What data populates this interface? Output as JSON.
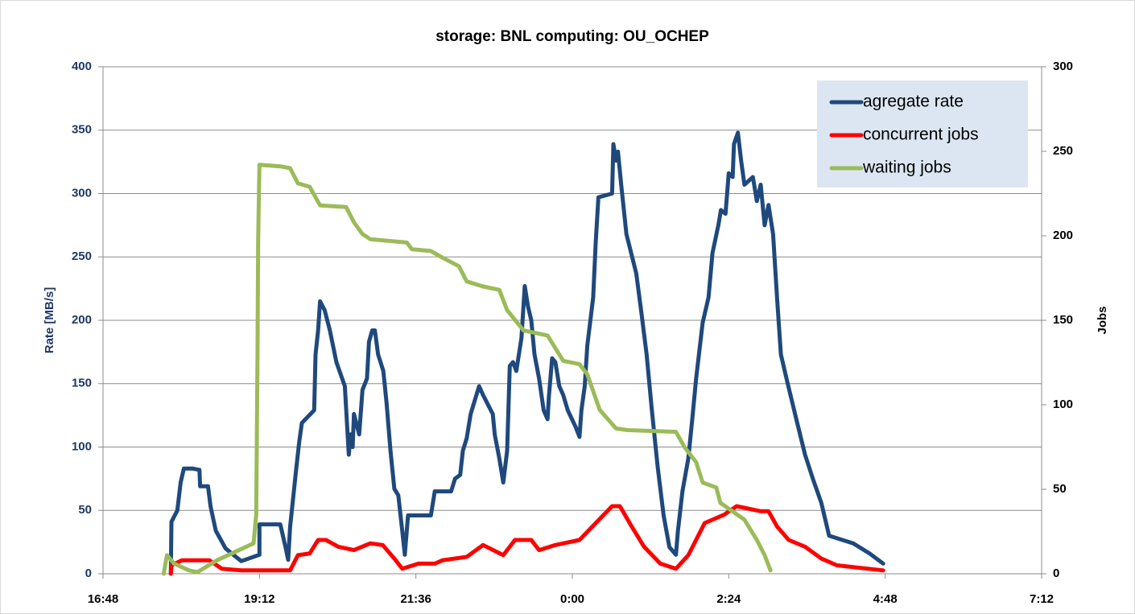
{
  "chart_data": {
    "type": "line",
    "title": "storage: BNL  computing: OU_OCHEP",
    "ylabel": "Rate [MB/s]",
    "y2label": "Jobs",
    "grid": true,
    "legend": "top-right",
    "xlim": [
      16.8,
      31.2
    ],
    "xticks": [
      {
        "value": 16.8,
        "label": "16:48"
      },
      {
        "value": 19.2,
        "label": "19:12"
      },
      {
        "value": 21.6,
        "label": "21:36"
      },
      {
        "value": 24,
        "label": "0:00"
      },
      {
        "value": 26.4,
        "label": "2:24"
      },
      {
        "value": 28.8,
        "label": "4:48"
      },
      {
        "value": 31.2,
        "label": "7:12"
      }
    ],
    "ylim": [
      0,
      400
    ],
    "yticks": [
      0,
      50,
      100,
      150,
      200,
      250,
      300,
      350,
      400
    ],
    "y2lim": [
      0,
      300
    ],
    "y2ticks": [
      0,
      50,
      100,
      150,
      200,
      250,
      300
    ],
    "series": [
      {
        "name": "agregate rate",
        "color": "#1f497d",
        "x": [
          17.84,
          17.85,
          17.94,
          17.99,
          18.04,
          18.18,
          18.28,
          18.29,
          18.41,
          18.45,
          18.53,
          18.68,
          18.92,
          19.2,
          19.2,
          19.52,
          19.6,
          19.64,
          19.67,
          19.76,
          19.81,
          19.85,
          20.04,
          20.06,
          20.1,
          20.13,
          20.2,
          20.28,
          20.38,
          20.51,
          20.57,
          20.6,
          20.63,
          20.65,
          20.73,
          20.78,
          20.85,
          20.88,
          20.93,
          20.97,
          21.02,
          21.1,
          21.15,
          21.21,
          21.27,
          21.33,
          21.39,
          21.43,
          21.48,
          21.52,
          21.83,
          21.89,
          22.14,
          22.2,
          22.28,
          22.32,
          22.38,
          22.44,
          22.57,
          22.63,
          22.78,
          22.81,
          22.88,
          22.94,
          23.0,
          23.04,
          23.09,
          23.14,
          23.22,
          23.27,
          23.32,
          23.37,
          23.42,
          23.49,
          23.56,
          23.62,
          23.64,
          23.69,
          23.74,
          23.8,
          23.86,
          23.93,
          24.05,
          24.11,
          24.14,
          24.19,
          24.23,
          24.32,
          24.36,
          24.4,
          24.61,
          24.63,
          24.67,
          24.7,
          24.75,
          24.83,
          24.98,
          25.06,
          25.14,
          25.22,
          25.31,
          25.4,
          25.49,
          25.59,
          25.62,
          25.69,
          25.78,
          25.84,
          25.9,
          26.0,
          26.09,
          26.15,
          26.24,
          26.28,
          26.35,
          26.4,
          26.46,
          26.48,
          26.54,
          26.59,
          26.64,
          26.77,
          26.83,
          26.89,
          26.95,
          27.01,
          27.08,
          27.14,
          27.2,
          27.3,
          27.45,
          27.57,
          27.69,
          27.82,
          27.94,
          28.31,
          28.56,
          28.77
        ],
        "values": [
          0,
          41,
          50,
          72,
          83,
          83,
          82,
          69,
          69,
          53,
          34,
          20,
          10,
          15,
          39,
          39,
          21,
          11,
          37,
          81,
          104,
          119,
          129,
          173,
          192,
          215,
          208,
          192,
          167,
          148,
          94,
          110,
          100,
          126,
          110,
          145,
          154,
          183,
          192,
          192,
          173,
          160,
          135,
          97,
          67,
          62,
          34,
          15,
          46,
          46,
          46,
          65,
          65,
          75,
          78,
          97,
          107,
          126,
          148,
          141,
          126,
          110,
          91,
          72,
          97,
          164,
          167,
          160,
          186,
          227,
          211,
          200,
          173,
          154,
          129,
          122,
          140,
          170,
          167,
          148,
          141,
          129,
          116,
          108,
          129,
          148,
          180,
          218,
          262,
          297,
          300,
          339,
          326,
          333,
          307,
          268,
          237,
          206,
          173,
          129,
          84,
          46,
          21,
          15,
          34,
          65,
          91,
          122,
          154,
          198,
          218,
          253,
          275,
          287,
          284,
          316,
          313,
          339,
          348,
          326,
          307,
          313,
          294,
          307,
          275,
          291,
          268,
          218,
          173,
          151,
          119,
          94,
          75,
          56,
          30,
          24,
          16,
          8
        ]
      },
      {
        "name": "concurrent jobs",
        "color": "#ff0000",
        "axis": "y2",
        "x": [
          17.84,
          17.85,
          18.01,
          18.43,
          18.62,
          18.92,
          19.67,
          19.79,
          19.97,
          20.1,
          20.22,
          20.41,
          20.65,
          20.9,
          21.09,
          21.27,
          21.39,
          21.64,
          21.89,
          22.01,
          22.38,
          22.63,
          22.94,
          23.12,
          23.37,
          23.49,
          23.74,
          24.11,
          24.36,
          24.61,
          24.73,
          24.91,
          25.1,
          25.35,
          25.59,
          25.78,
          26.03,
          26.33,
          26.52,
          26.89,
          27.01,
          27.14,
          27.32,
          27.57,
          27.82,
          28.06,
          28.77
        ],
        "values": [
          0,
          5,
          8,
          8,
          3,
          2,
          2,
          11,
          12,
          20,
          20,
          16,
          14,
          18,
          17,
          9,
          3,
          6,
          6,
          8,
          10,
          17,
          11,
          20,
          20,
          14,
          17,
          20,
          30,
          40,
          40,
          28,
          16,
          6,
          3,
          11,
          30,
          35,
          40,
          37,
          37,
          28,
          20,
          16,
          9,
          5,
          2
        ]
      },
      {
        "name": "waiting jobs",
        "color": "#9bbb59",
        "axis": "y2",
        "x": [
          17.73,
          17.78,
          17.89,
          18.12,
          18.25,
          18.55,
          19.11,
          19.15,
          19.17,
          19.18,
          19.2,
          19.54,
          19.67,
          19.79,
          19.97,
          20.13,
          20.53,
          20.65,
          20.78,
          20.9,
          21.46,
          21.54,
          21.83,
          22.01,
          22.26,
          22.38,
          22.63,
          22.88,
          23.0,
          23.25,
          23.62,
          23.86,
          24.11,
          24.23,
          24.42,
          24.67,
          24.85,
          25.59,
          25.72,
          25.9,
          26.0,
          26.21,
          26.27,
          26.64,
          26.83,
          26.95,
          27.04
        ],
        "values": [
          0,
          11,
          6,
          2,
          1,
          8,
          18,
          35,
          130,
          197,
          242,
          241,
          240,
          231,
          229,
          218,
          217,
          208,
          201,
          198,
          196,
          192,
          191,
          187,
          182,
          173,
          170,
          168,
          156,
          144,
          141,
          126,
          124,
          118,
          97,
          86,
          85,
          84,
          75,
          66,
          54,
          51,
          42,
          32,
          20,
          11,
          2
        ]
      }
    ]
  }
}
